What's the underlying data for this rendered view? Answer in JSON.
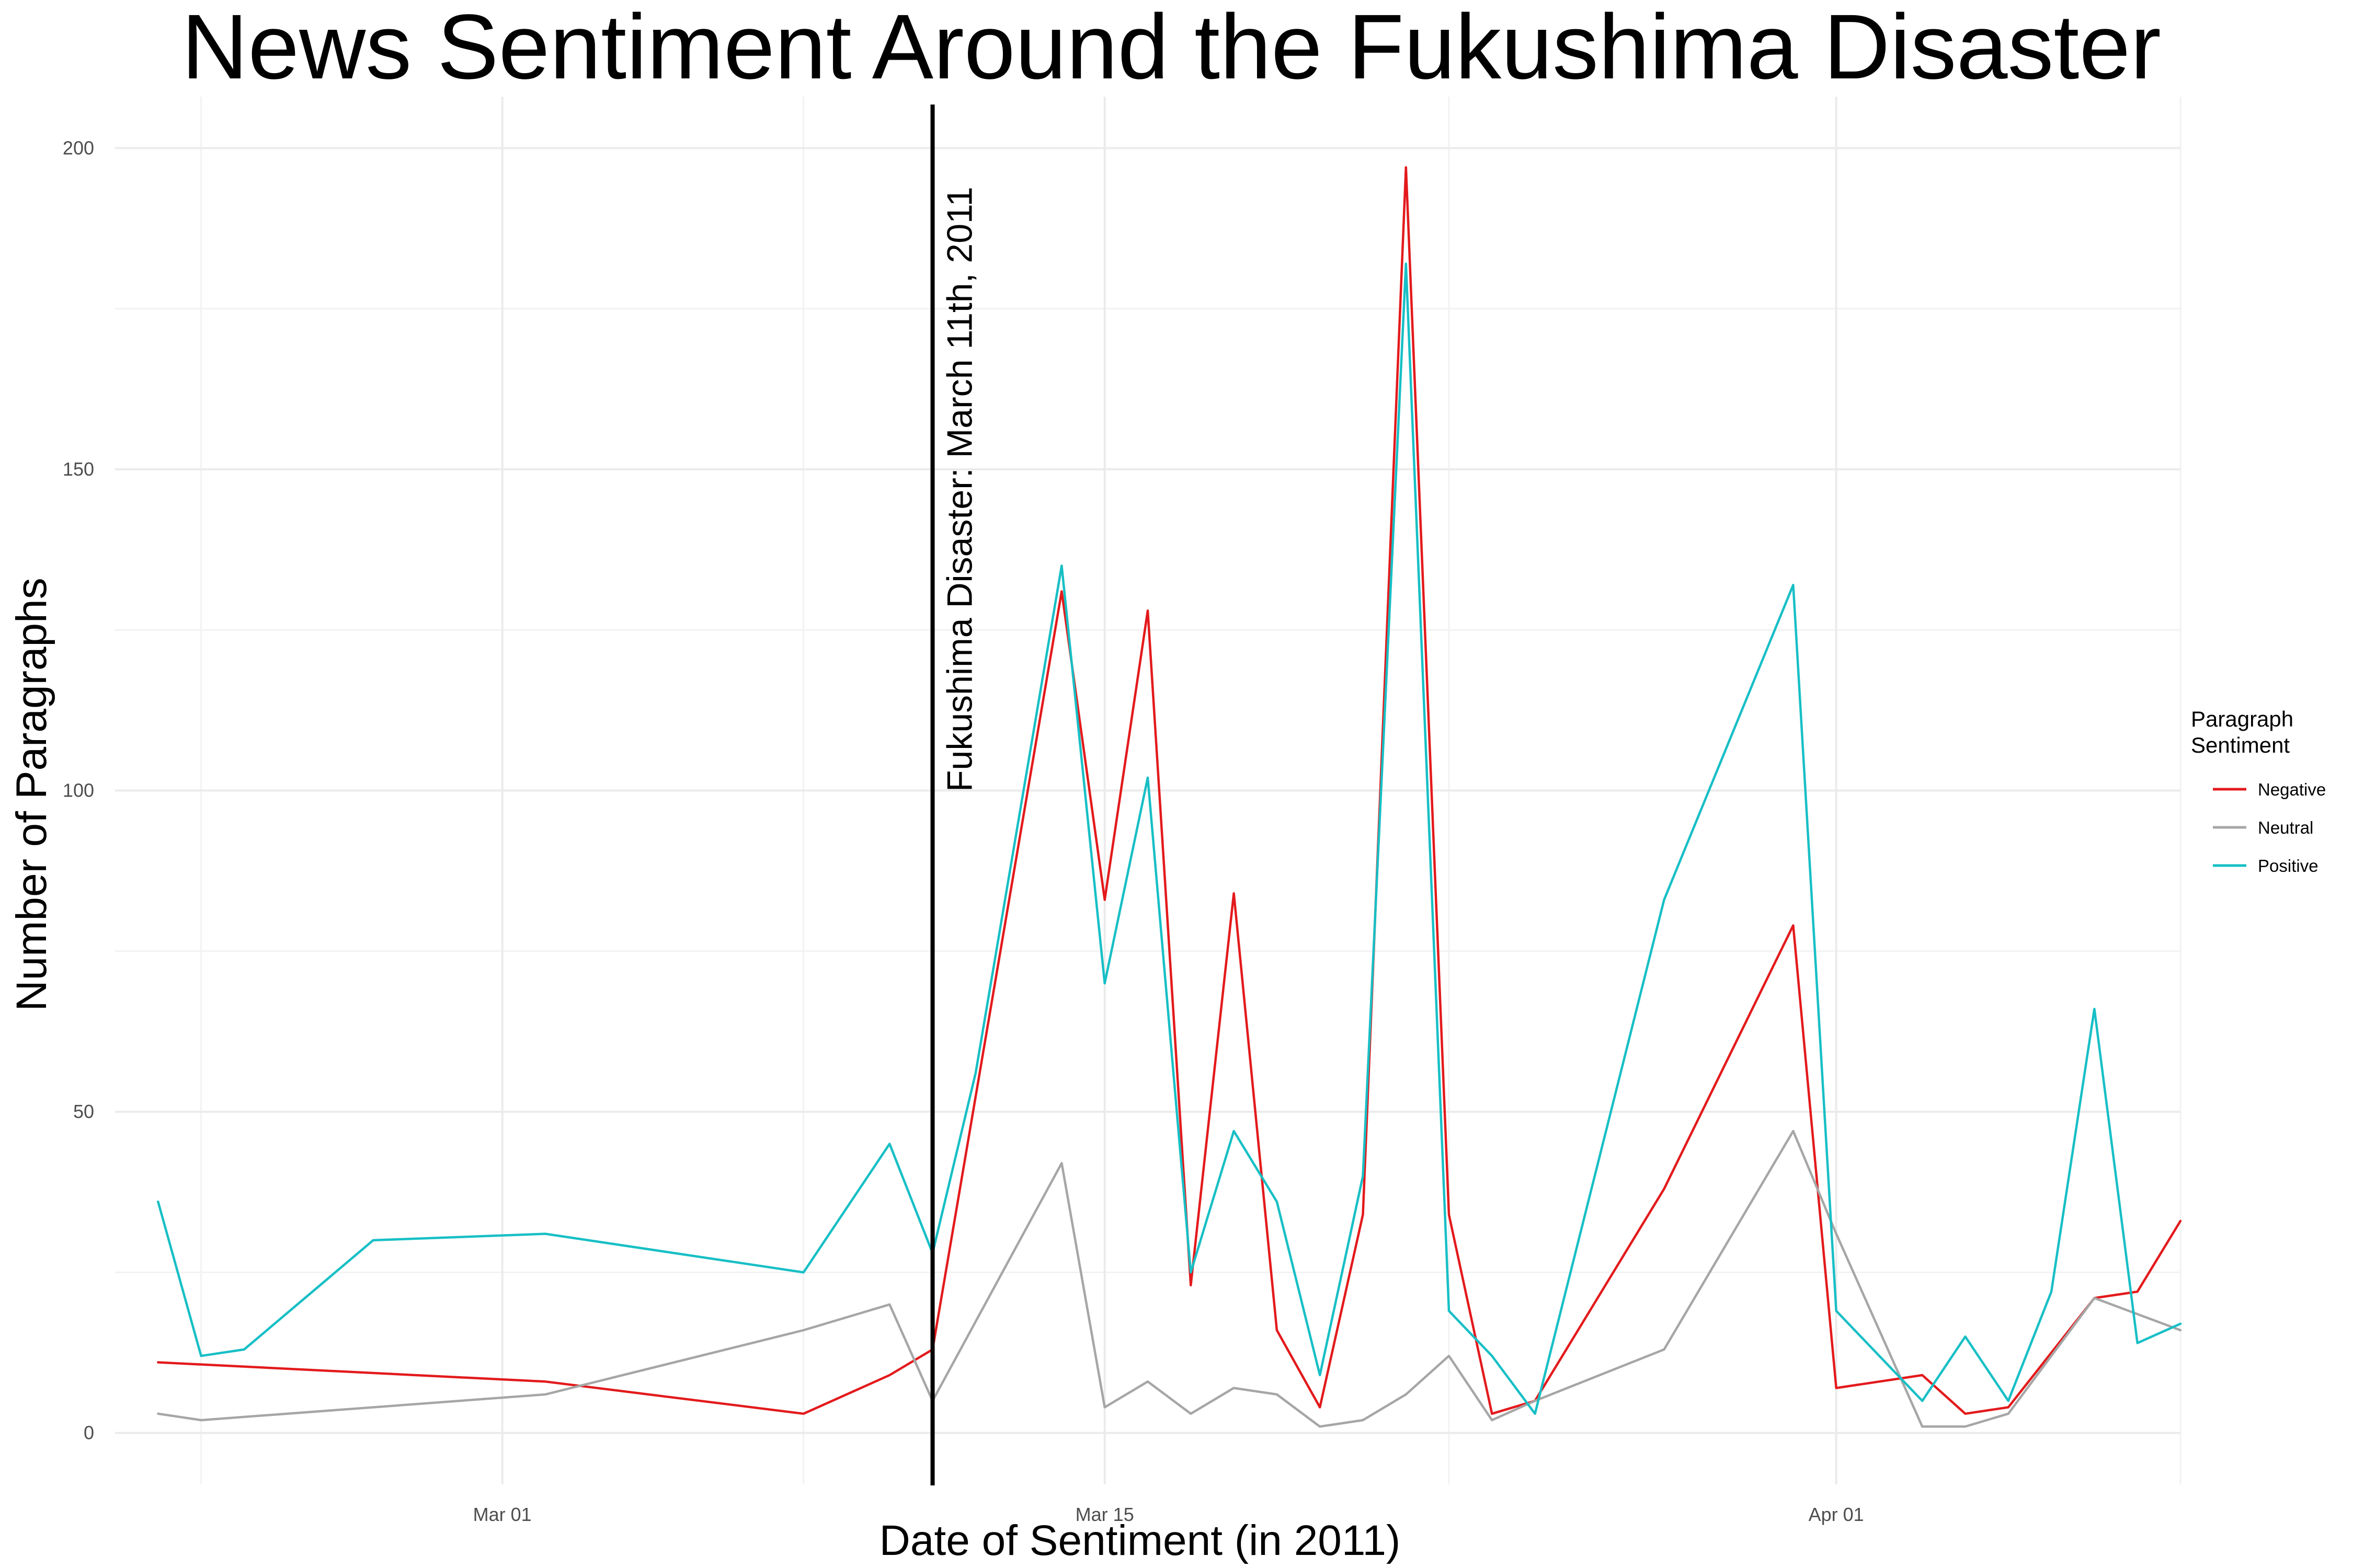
{
  "chart_data": {
    "type": "line",
    "title": "News Sentiment Around the Fukushima Disaster",
    "xlabel": "Date of Sentiment (in 2011)",
    "ylabel": "Number of Paragraphs",
    "ylim": [
      -8,
      208
    ],
    "xlim": [
      "2011-02-20",
      "2011-04-09"
    ],
    "x_ticks": [
      {
        "date": "2011-03-01",
        "label": "Mar 01"
      },
      {
        "date": "2011-03-15",
        "label": "Mar 15"
      },
      {
        "date": "2011-04-01",
        "label": "Apr 01"
      }
    ],
    "y_ticks": [
      0,
      50,
      100,
      150,
      200
    ],
    "grid": true,
    "legend": {
      "title_lines": [
        "Paragraph",
        "Sentiment"
      ],
      "position": "right"
    },
    "series": [
      {
        "name": "Negative",
        "color": "#e31a1c",
        "points": [
          [
            "2011-02-21",
            11
          ],
          [
            "2011-03-02",
            8
          ],
          [
            "2011-03-08",
            3
          ],
          [
            "2011-03-10",
            9
          ],
          [
            "2011-03-11",
            13
          ],
          [
            "2011-03-14",
            131
          ],
          [
            "2011-03-15",
            83
          ],
          [
            "2011-03-16",
            128
          ],
          [
            "2011-03-17",
            23
          ],
          [
            "2011-03-18",
            84
          ],
          [
            "2011-03-19",
            16
          ],
          [
            "2011-03-20",
            4
          ],
          [
            "2011-03-21",
            34
          ],
          [
            "2011-03-22",
            197
          ],
          [
            "2011-03-23",
            34
          ],
          [
            "2011-03-24",
            3
          ],
          [
            "2011-03-25",
            5
          ],
          [
            "2011-03-28",
            38
          ],
          [
            "2011-03-31",
            79
          ],
          [
            "2011-04-01",
            7
          ],
          [
            "2011-04-03",
            9
          ],
          [
            "2011-04-04",
            3
          ],
          [
            "2011-04-05",
            4
          ],
          [
            "2011-04-07",
            21
          ],
          [
            "2011-04-08",
            22
          ],
          [
            "2011-04-09",
            33
          ]
        ]
      },
      {
        "name": "Neutral",
        "color": "#a6a6a6",
        "points": [
          [
            "2011-02-21",
            3
          ],
          [
            "2011-02-22",
            2
          ],
          [
            "2011-03-02",
            6
          ],
          [
            "2011-03-08",
            16
          ],
          [
            "2011-03-10",
            20
          ],
          [
            "2011-03-11",
            5
          ],
          [
            "2011-03-14",
            42
          ],
          [
            "2011-03-15",
            4
          ],
          [
            "2011-03-16",
            8
          ],
          [
            "2011-03-17",
            3
          ],
          [
            "2011-03-18",
            7
          ],
          [
            "2011-03-19",
            6
          ],
          [
            "2011-03-20",
            1
          ],
          [
            "2011-03-21",
            2
          ],
          [
            "2011-03-22",
            6
          ],
          [
            "2011-03-23",
            12
          ],
          [
            "2011-03-24",
            2
          ],
          [
            "2011-03-25",
            5
          ],
          [
            "2011-03-28",
            13
          ],
          [
            "2011-03-31",
            47
          ],
          [
            "2011-04-01",
            31
          ],
          [
            "2011-04-03",
            1
          ],
          [
            "2011-04-04",
            1
          ],
          [
            "2011-04-05",
            3
          ],
          [
            "2011-04-07",
            21
          ],
          [
            "2011-04-09",
            16
          ]
        ]
      },
      {
        "name": "Positive",
        "color": "#17bfc5",
        "points": [
          [
            "2011-02-21",
            36
          ],
          [
            "2011-02-22",
            12
          ],
          [
            "2011-02-23",
            13
          ],
          [
            "2011-02-26",
            30
          ],
          [
            "2011-03-02",
            31
          ],
          [
            "2011-03-08",
            25
          ],
          [
            "2011-03-10",
            45
          ],
          [
            "2011-03-11",
            28
          ],
          [
            "2011-03-12",
            56
          ],
          [
            "2011-03-14",
            135
          ],
          [
            "2011-03-15",
            70
          ],
          [
            "2011-03-16",
            102
          ],
          [
            "2011-03-17",
            25
          ],
          [
            "2011-03-18",
            47
          ],
          [
            "2011-03-19",
            36
          ],
          [
            "2011-03-20",
            9
          ],
          [
            "2011-03-21",
            40
          ],
          [
            "2011-03-22",
            182
          ],
          [
            "2011-03-23",
            19
          ],
          [
            "2011-03-24",
            12
          ],
          [
            "2011-03-25",
            3
          ],
          [
            "2011-03-28",
            83
          ],
          [
            "2011-03-31",
            132
          ],
          [
            "2011-04-01",
            19
          ],
          [
            "2011-04-03",
            5
          ],
          [
            "2011-04-04",
            15
          ],
          [
            "2011-04-05",
            5
          ],
          [
            "2011-04-06",
            22
          ],
          [
            "2011-04-07",
            66
          ],
          [
            "2011-04-08",
            14
          ],
          [
            "2011-04-09",
            17
          ]
        ]
      }
    ],
    "annotation": {
      "type": "vline",
      "date": "2011-03-11",
      "label": "Fukushima Disaster: March 11th, 2011",
      "color": "#000000"
    }
  }
}
